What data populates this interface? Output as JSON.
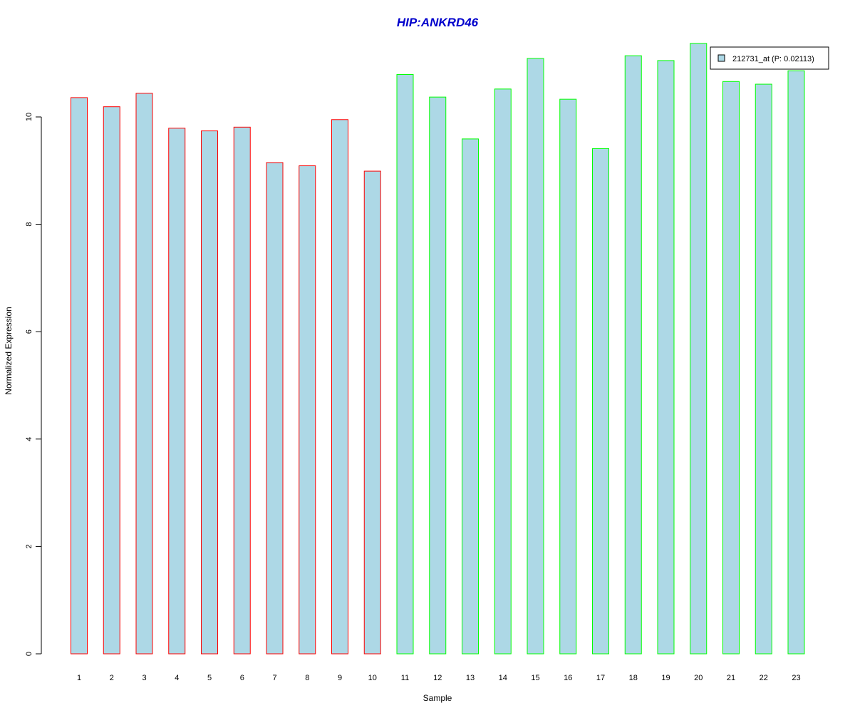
{
  "chart_data": {
    "type": "bar",
    "title": "HIP:ANKRD46",
    "xlabel": "Sample",
    "ylabel": "Normalized Expression",
    "categories": [
      "1",
      "2",
      "3",
      "4",
      "5",
      "6",
      "7",
      "8",
      "9",
      "10",
      "11",
      "12",
      "13",
      "14",
      "15",
      "16",
      "17",
      "18",
      "19",
      "20",
      "21",
      "22",
      "23"
    ],
    "series": [
      {
        "name": "212731_at (P: 0.02113)",
        "values": [
          10.36,
          10.19,
          10.44,
          9.79,
          9.74,
          9.81,
          9.15,
          9.09,
          9.95,
          8.99,
          10.79,
          10.37,
          9.59,
          10.52,
          11.09,
          10.33,
          9.41,
          11.14,
          11.05,
          11.37,
          10.66,
          10.61,
          10.86
        ]
      }
    ],
    "bar_outline_groups": [
      {
        "samples": [
          "1",
          "2",
          "3",
          "4",
          "5",
          "6",
          "7",
          "8",
          "9",
          "10"
        ],
        "color": "#ff0000"
      },
      {
        "samples": [
          "11",
          "12",
          "13",
          "14",
          "15",
          "16",
          "17",
          "18",
          "19",
          "20",
          "21",
          "22",
          "23"
        ],
        "color": "#00ff00"
      }
    ],
    "y_ticks": [
      0,
      2,
      4,
      6,
      8,
      10
    ],
    "ylim": [
      0,
      11.4
    ],
    "grid": false,
    "legend_position": "top-right",
    "colors": {
      "bar_fill": "#add8e6",
      "title": "#0000cc",
      "axis": "#000000"
    }
  }
}
